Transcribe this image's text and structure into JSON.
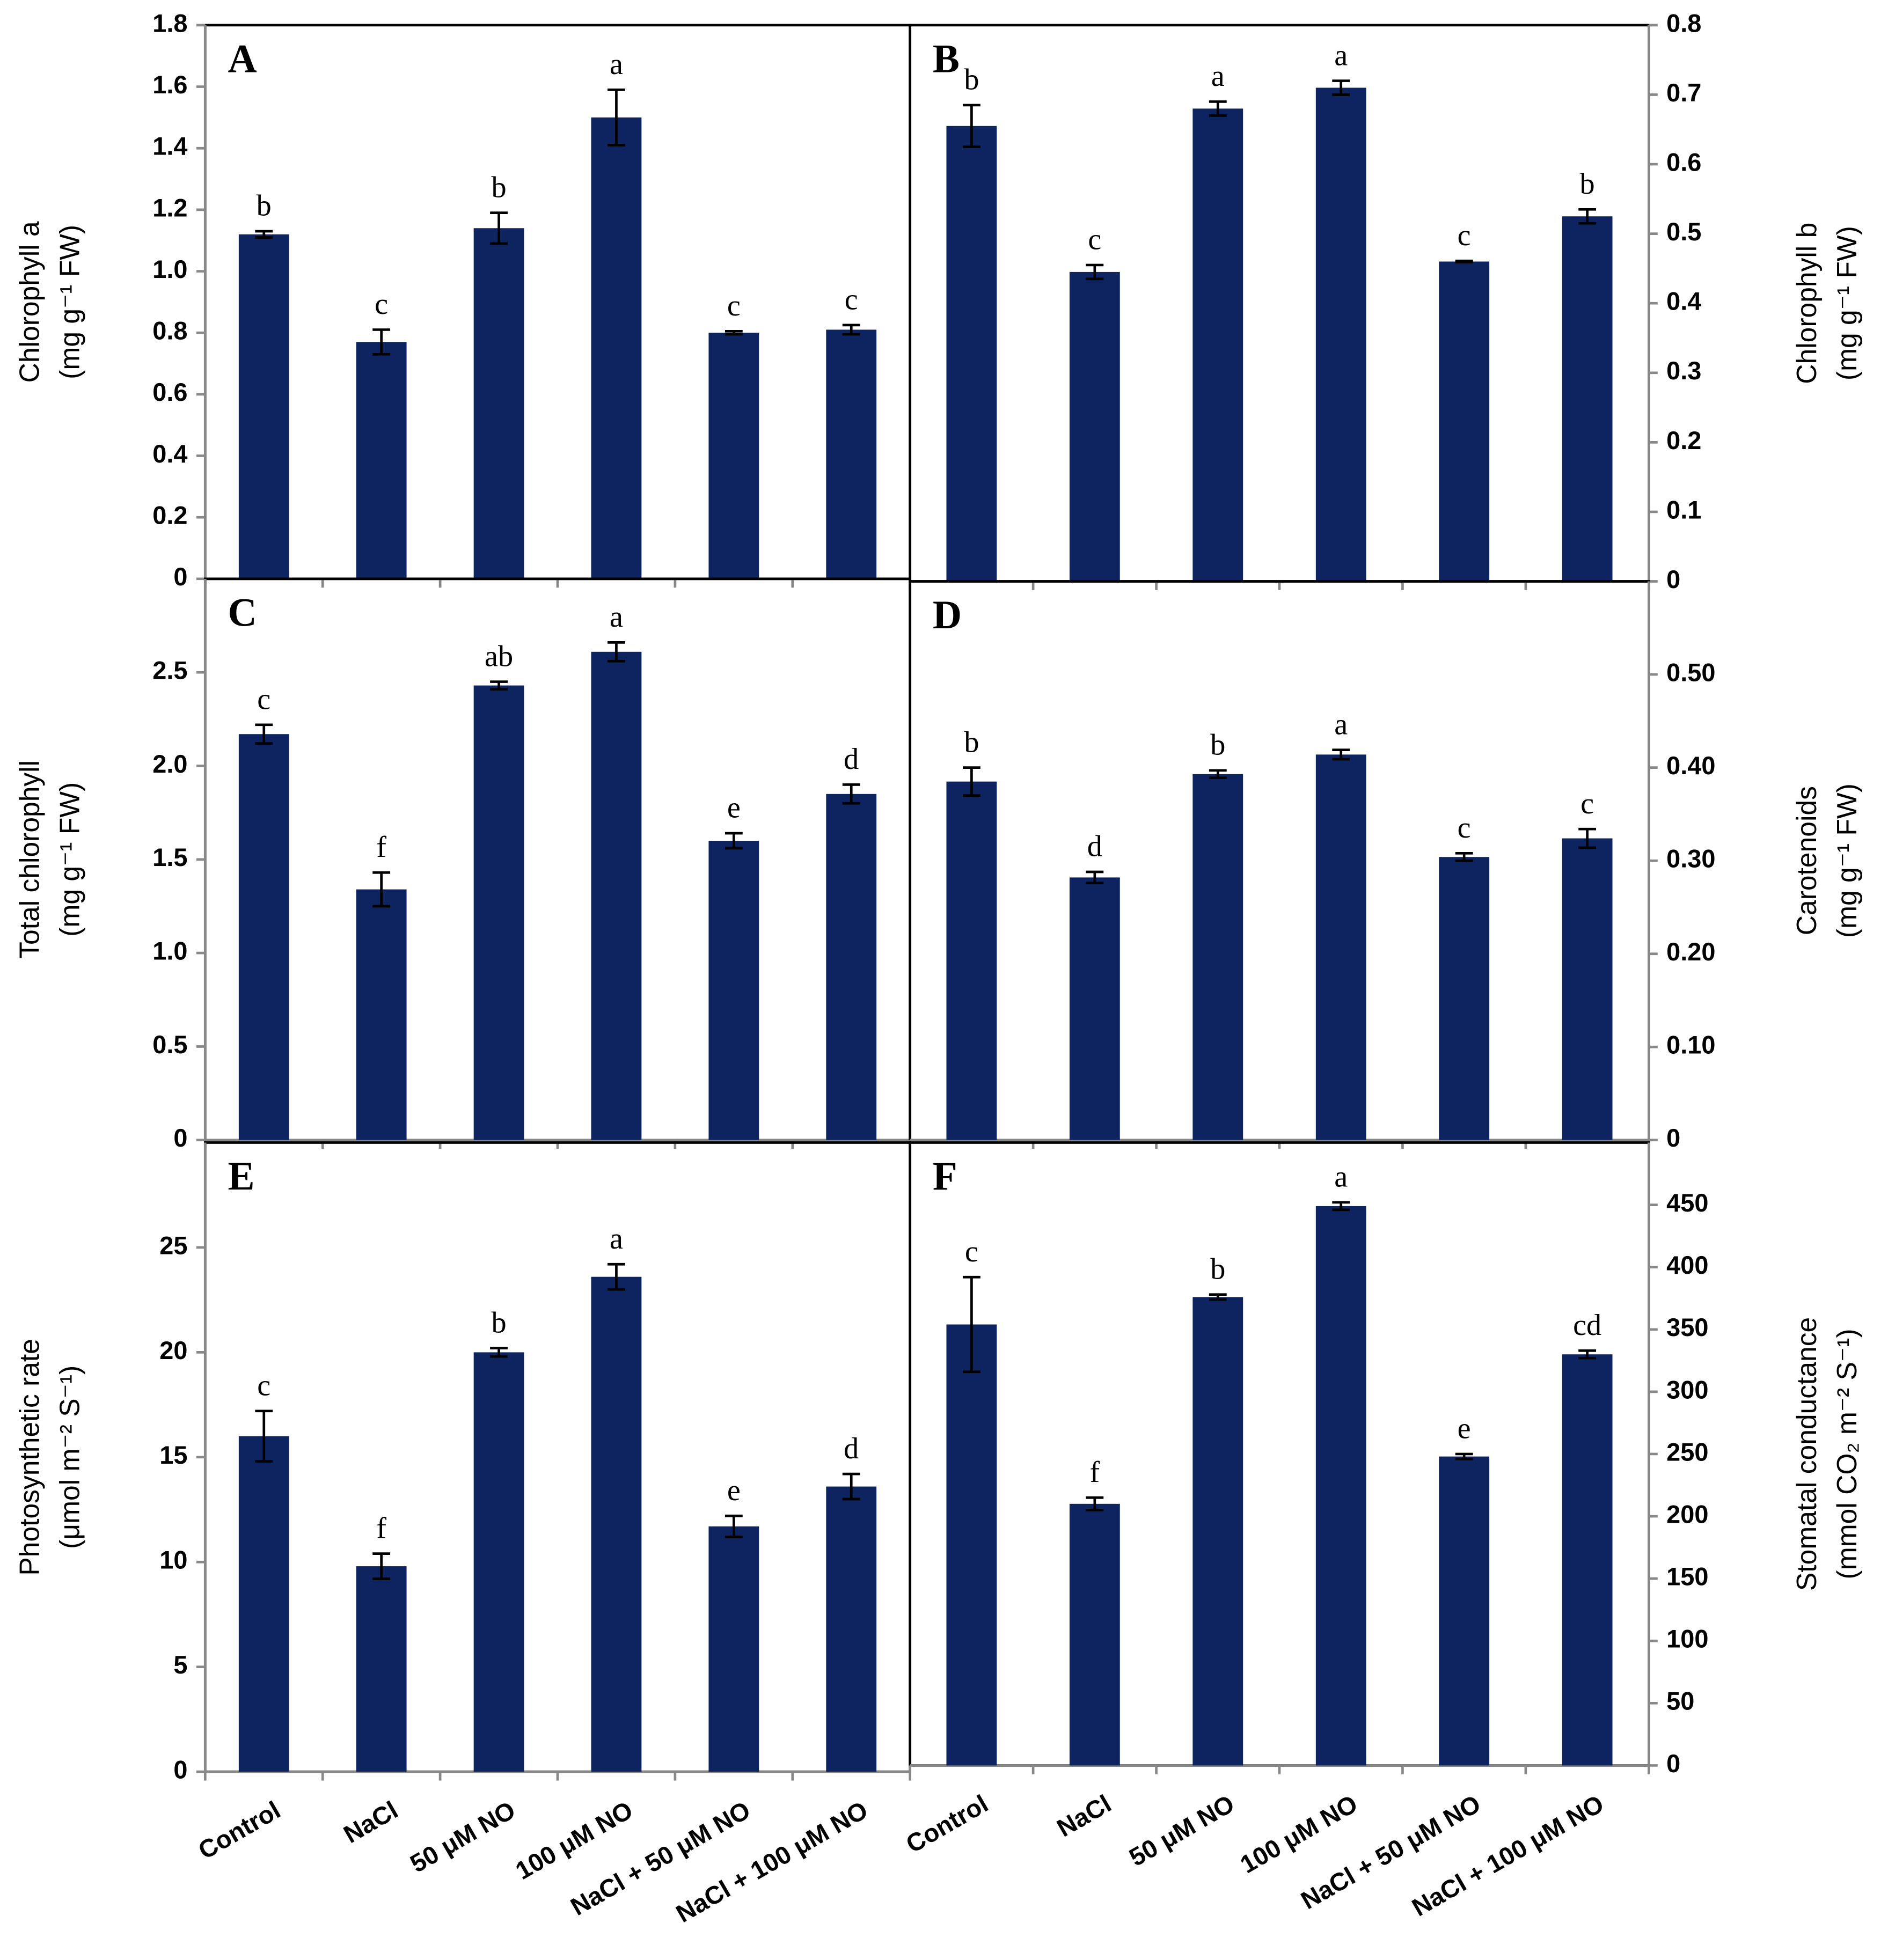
{
  "chart_data": [
    {
      "type": "bar",
      "panel": "A",
      "ylabel": [
        "Chlorophyll a",
        "(mg g⁻¹ FW)"
      ],
      "color": "#0d2460",
      "values": [
        1.12,
        0.77,
        1.14,
        1.5,
        0.8,
        0.81
      ],
      "errors": [
        0.01,
        0.04,
        0.05,
        0.09,
        0.005,
        0.015
      ],
      "annotations": [
        "b",
        "c",
        "b",
        "a",
        "c",
        "c"
      ],
      "ylim": [
        0,
        1.8
      ],
      "yticks": [
        0,
        0.2,
        0.4,
        0.6,
        0.8,
        {
          "value": 1,
          "label": "1.0"
        },
        1.2,
        1.4,
        1.6,
        1.8
      ]
    },
    {
      "type": "bar",
      "panel": "B",
      "ylabel": [
        "Chlorophyll b",
        "(mg g⁻¹ FW)"
      ],
      "color": "#0d2460",
      "values": [
        0.655,
        0.445,
        0.68,
        0.71,
        0.46,
        0.525
      ],
      "errors": [
        0.03,
        0.01,
        0.01,
        0.01,
        0.001,
        0.01
      ],
      "annotations": [
        "b",
        "c",
        "a",
        "a",
        "c",
        "b"
      ],
      "ylim": [
        0,
        0.8
      ],
      "yticks": [
        0,
        0.1,
        0.2,
        0.3,
        0.4,
        0.5,
        0.6,
        0.7,
        0.8
      ]
    },
    {
      "type": "bar",
      "panel": "C",
      "ylabel": [
        "Total chlorophyll",
        "(mg g⁻¹ FW)"
      ],
      "color": "#0d2460",
      "values": [
        2.17,
        1.34,
        2.43,
        2.61,
        1.6,
        1.85
      ],
      "errors": [
        0.05,
        0.09,
        0.02,
        0.05,
        0.04,
        0.05
      ],
      "annotations": [
        "c",
        "f",
        "ab",
        "a",
        "e",
        "d"
      ],
      "ylim": [
        0,
        3
      ],
      "yticks": [
        0,
        0.5,
        {
          "value": 1,
          "label": "1.0"
        },
        1.5,
        {
          "value": 2,
          "label": "2.0"
        },
        2.5
      ]
    },
    {
      "type": "bar",
      "panel": "D",
      "ylabel": [
        "Carotenoids",
        "(mg g⁻¹ FW)"
      ],
      "color": "#0d2460",
      "values": [
        0.385,
        0.282,
        0.393,
        0.414,
        0.304,
        0.324
      ],
      "errors": [
        0.015,
        0.006,
        0.004,
        0.005,
        0.004,
        0.01
      ],
      "annotations": [
        "b",
        "d",
        "b",
        "a",
        "c",
        "c"
      ],
      "ylim": [
        0,
        0.6
      ],
      "yticks": [
        0,
        {
          "value": 0.1,
          "label": "0.10"
        },
        {
          "value": 0.2,
          "label": "0.20"
        },
        {
          "value": 0.3,
          "label": "0.30"
        },
        {
          "value": 0.4,
          "label": "0.40"
        },
        {
          "value": 0.5,
          "label": "0.50"
        }
      ]
    },
    {
      "type": "bar",
      "panel": "E",
      "ylabel": [
        "Photosynthetic rate",
        "(μmol m⁻² S⁻¹)"
      ],
      "color": "#0d2460",
      "categories": [
        "Control",
        "NaCl",
        "50 μM NO",
        "100 μM NO",
        "NaCl + 50 μM NO",
        "NaCl + 100 μM NO"
      ],
      "values": [
        16,
        9.8,
        20,
        23.6,
        11.7,
        13.6
      ],
      "errors": [
        1.2,
        0.6,
        0.2,
        0.6,
        0.5,
        0.6
      ],
      "annotations": [
        "c",
        "f",
        "b",
        "a",
        "e",
        "d"
      ],
      "ylim": [
        0,
        30
      ],
      "yticks": [
        0,
        5,
        10,
        15,
        20,
        25
      ]
    },
    {
      "type": "bar",
      "panel": "F",
      "ylabel": [
        "Stomatal conductance",
        "(mmol CO₂ m⁻² S⁻¹)"
      ],
      "color": "#0d2460",
      "categories": [
        "Control",
        "NaCl",
        "50 μM NO",
        "100 μM NO",
        "NaCl + 50 μM NO",
        "NaCl + 100 μM NO"
      ],
      "values": [
        354,
        210,
        376,
        449,
        248,
        330
      ],
      "errors": [
        38,
        5,
        2,
        3,
        2,
        3
      ],
      "annotations": [
        "c",
        "f",
        "b",
        "a",
        "e",
        "cd"
      ],
      "ylim": [
        0,
        500
      ],
      "yticks": [
        0,
        50,
        100,
        150,
        200,
        250,
        300,
        350,
        400,
        450
      ]
    }
  ]
}
